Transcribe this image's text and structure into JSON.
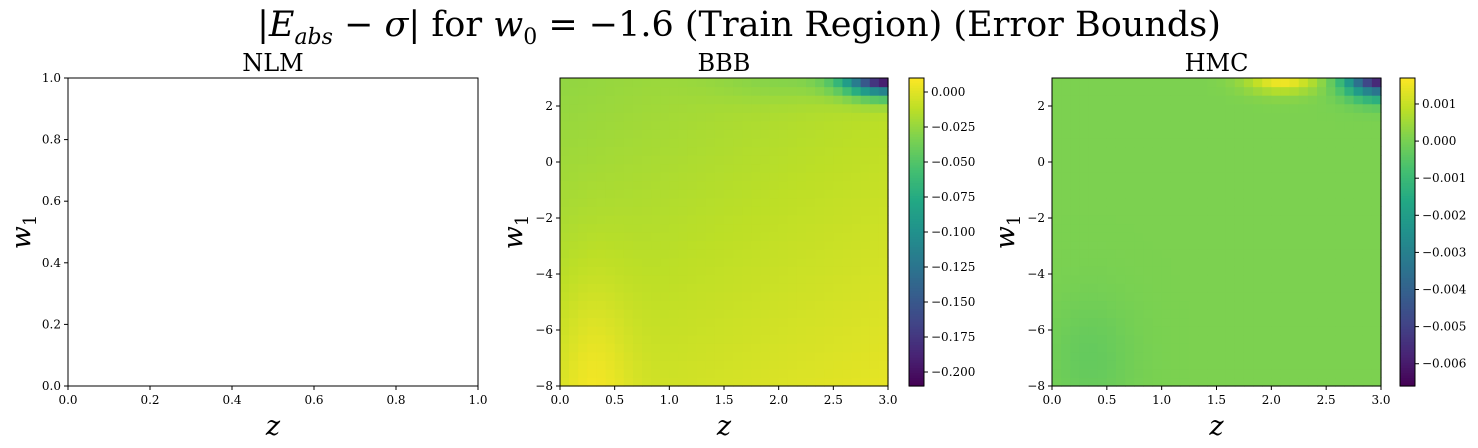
{
  "figure": {
    "suptitle": {
      "pre": "|",
      "E": "E",
      "sub": "abs",
      "mid": " − ",
      "sigma": "σ",
      "bar": "| for ",
      "w": "w",
      "w_sub": "0",
      "rest": " = −1.6 (Train Region) (Error Bounds)"
    }
  },
  "chart_data": [
    {
      "type": "heatmap",
      "title": "NLM",
      "xlabel": "z",
      "ylabel": "w_1",
      "xlim": [
        0,
        1
      ],
      "ylim": [
        0,
        1
      ],
      "x_ticks": [
        "0.0",
        "0.2",
        "0.4",
        "0.6",
        "0.8",
        "1.0"
      ],
      "y_ticks": [
        "0.0",
        "0.2",
        "0.4",
        "0.6",
        "0.8",
        "1.0"
      ],
      "empty": true,
      "colorbar": null
    },
    {
      "type": "heatmap",
      "title": "BBB",
      "xlabel": "z",
      "ylabel": "w_1",
      "xlim": [
        0,
        3
      ],
      "ylim": [
        -8,
        3
      ],
      "x_ticks": [
        "0.0",
        "0.5",
        "1.0",
        "1.5",
        "2.0",
        "2.5",
        "3.0"
      ],
      "y_ticks": [
        "−8",
        "−6",
        "−4",
        "−2",
        "0",
        "2"
      ],
      "colormap": "viridis",
      "colorbar": {
        "vmin": -0.21,
        "vmax": 0.01,
        "ticks": [
          0.0,
          -0.025,
          -0.05,
          -0.075,
          -0.1,
          -0.125,
          -0.15,
          -0.175,
          -0.2
        ],
        "tick_labels": [
          "0.000",
          "−0.025",
          "−0.050",
          "−0.075",
          "−0.100",
          "−0.125",
          "−0.150",
          "−0.175",
          "−0.200"
        ]
      },
      "field": "Values near 0 across most of the domain (approx −0.02 to 0.005); strongest negative region in the top-right corner (z≈2.8–3.0, w1≈2.5–3) reaching about −0.21."
    },
    {
      "type": "heatmap",
      "title": "HMC",
      "xlabel": "z",
      "ylabel": "w_1",
      "xlim": [
        0,
        3
      ],
      "ylim": [
        -8,
        3
      ],
      "x_ticks": [
        "0.0",
        "0.5",
        "1.0",
        "1.5",
        "2.0",
        "2.5",
        "3.0"
      ],
      "y_ticks": [
        "−8",
        "−6",
        "−4",
        "−2",
        "0",
        "2"
      ],
      "colormap": "viridis",
      "colorbar": {
        "vmin": -0.0066,
        "vmax": 0.0017,
        "ticks": [
          0.001,
          0.0,
          -0.001,
          -0.002,
          -0.003,
          -0.004,
          -0.005,
          -0.006
        ],
        "tick_labels": [
          "0.001",
          "0.000",
          "−0.001",
          "−0.002",
          "−0.003",
          "−0.004",
          "−0.005",
          "−0.006"
        ]
      },
      "field": "Mostly about −0.0002 to 0.0003; positive maximum ≈0.0016 near z≈2.1, w1≈2.9; negative minimum ≈−0.006 in the top-right corner."
    }
  ]
}
